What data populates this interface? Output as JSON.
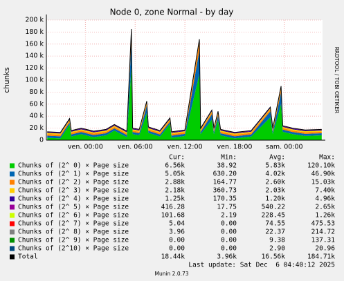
{
  "chart_data": {
    "type": "area",
    "stacked": true,
    "title": "Node 0, zone Normal - by day",
    "ylabel": "chunks",
    "side_text": "RRDTOOL / TOBI OETIKER",
    "footer": "Last update: Sat Dec  6 04:40:12 2025",
    "version": "Munin 2.0.73",
    "stats_headers": [
      "Cur:",
      "Min:",
      "Avg:",
      "Max:"
    ],
    "xlim": [
      -4.7,
      28.6
    ],
    "xticks": [
      {
        "value": 0,
        "label": "ven. 00:00"
      },
      {
        "value": 6,
        "label": "ven. 06:00"
      },
      {
        "value": 12,
        "label": "ven. 12:00"
      },
      {
        "value": 18,
        "label": "ven. 18:00"
      },
      {
        "value": 24,
        "label": "sam. 00:00"
      }
    ],
    "ylim": [
      0,
      200000
    ],
    "yticks": [
      0,
      {
        "value": 20000,
        "label": "20 k"
      },
      {
        "value": 40000,
        "label": "40 k"
      },
      {
        "value": 60000,
        "label": "60 k"
      },
      {
        "value": 80000,
        "label": "80 k"
      },
      {
        "value": 100000,
        "label": "100 k"
      },
      {
        "value": 120000,
        "label": "120 k"
      },
      {
        "value": 140000,
        "label": "140 k"
      },
      {
        "value": 160000,
        "label": "160 k"
      },
      {
        "value": 180000,
        "label": "180 k"
      },
      {
        "value": 200000,
        "label": "200 k"
      }
    ],
    "grid": true,
    "x": [
      -4.6,
      -3,
      -1.9,
      -1.7,
      -0.5,
      1,
      2.5,
      3.5,
      5,
      5.55,
      5.7,
      6.5,
      7.4,
      7.6,
      9,
      10.2,
      10.4,
      12,
      13.75,
      13.9,
      15.25,
      15.5,
      16,
      16.3,
      18,
      20,
      22.3,
      22.6,
      23.6,
      23.8,
      25,
      26.5,
      28.5
    ],
    "series": [
      {
        "name": "Chunks of (2^ 0) × Page size",
        "color": "#00cc00",
        "stats": [
          "6.56k",
          "38.92",
          "5.83k",
          "120.10k"
        ],
        "values": [
          4000,
          3000,
          26000,
          6000,
          10000,
          5000,
          8000,
          16000,
          5000,
          120000,
          10000,
          8000,
          45000,
          12000,
          6000,
          27000,
          4000,
          7000,
          110000,
          10000,
          34000,
          10000,
          33000,
          8000,
          3000,
          6000,
          38000,
          10000,
          60000,
          14000,
          10000,
          7000,
          8000
        ]
      },
      {
        "name": "Chunks of (2^ 1) × Page size",
        "color": "#0066b3",
        "stats": [
          "5.05k",
          "630.20",
          "4.02k",
          "46.90k"
        ],
        "values": [
          3500,
          3500,
          3500,
          3500,
          3500,
          3500,
          3500,
          3500,
          3500,
          46000,
          3500,
          3500,
          12000,
          3500,
          3500,
          3500,
          3500,
          3500,
          40000,
          3500,
          9000,
          3500,
          8000,
          3500,
          3500,
          3500,
          10000,
          3500,
          20000,
          3500,
          3500,
          3500,
          3500
        ]
      },
      {
        "name": "Chunks of (2^ 2) × Page size",
        "color": "#ff8000",
        "stats": [
          "2.88k",
          "164.77",
          "2.60k",
          "15.03k"
        ],
        "values": [
          2500,
          2500,
          2500,
          2500,
          2500,
          2500,
          2500,
          2500,
          2500,
          15000,
          2500,
          2500,
          4000,
          2500,
          2500,
          2500,
          2500,
          2500,
          14000,
          2500,
          3000,
          2500,
          3000,
          2500,
          2500,
          2500,
          3000,
          2500,
          6000,
          2500,
          2500,
          2500,
          2500
        ]
      },
      {
        "name": "Chunks of (2^ 3) × Page size",
        "color": "#ffcc00",
        "stats": [
          "2.18k",
          "360.73",
          "2.03k",
          "7.40k"
        ],
        "values": [
          2000,
          2000,
          2000,
          2000,
          2000,
          2000,
          2000,
          2000,
          2000,
          2000,
          2000,
          2000,
          2000,
          2000,
          2000,
          2000,
          2000,
          2000,
          2000,
          2000,
          2000,
          2000,
          2000,
          2000,
          2000,
          2000,
          2000,
          2000,
          2000,
          2000,
          2000,
          2000,
          2000
        ]
      },
      {
        "name": "Chunks of (2^ 4) × Page size",
        "color": "#330099",
        "stats": [
          "1.25k",
          "170.35",
          "1.20k",
          "4.96k"
        ],
        "values": [
          1200,
          1200,
          1200,
          1200,
          1200,
          1200,
          1200,
          1200,
          1200,
          1200,
          1200,
          1200,
          1200,
          1200,
          1200,
          1200,
          1200,
          1200,
          1200,
          1200,
          1200,
          1200,
          1200,
          1200,
          1200,
          1200,
          1200,
          1200,
          1200,
          1200,
          1200,
          1200,
          1200
        ]
      },
      {
        "name": "Chunks of (2^ 5) × Page size",
        "color": "#990099",
        "stats": [
          "416.28",
          "17.75",
          "540.22",
          "2.65k"
        ],
        "values": [
          500,
          500,
          500,
          500,
          500,
          500,
          500,
          500,
          500,
          500,
          500,
          500,
          500,
          500,
          500,
          500,
          500,
          500,
          500,
          500,
          500,
          500,
          500,
          500,
          500,
          500,
          500,
          500,
          500,
          500,
          500,
          500,
          500
        ]
      },
      {
        "name": "Chunks of (2^ 6) × Page size",
        "color": "#ccff00",
        "stats": [
          "101.68",
          "2.19",
          "228.45",
          "1.26k"
        ],
        "values": [
          200,
          200,
          200,
          200,
          200,
          200,
          200,
          200,
          200,
          200,
          200,
          200,
          200,
          200,
          200,
          200,
          200,
          200,
          200,
          200,
          200,
          200,
          200,
          200,
          200,
          200,
          200,
          200,
          200,
          200,
          200,
          200,
          200
        ]
      },
      {
        "name": "Chunks of (2^ 7) × Page size",
        "color": "#ff0000",
        "stats": [
          "5.04",
          "0.00",
          "74.55",
          "475.53"
        ],
        "values": [
          70,
          70,
          70,
          70,
          70,
          70,
          70,
          70,
          70,
          70,
          70,
          70,
          70,
          70,
          70,
          70,
          70,
          70,
          70,
          70,
          70,
          70,
          70,
          70,
          70,
          70,
          70,
          70,
          70,
          70,
          70,
          70,
          70
        ]
      },
      {
        "name": "Chunks of (2^ 8) × Page size",
        "color": "#808080",
        "stats": [
          "3.96",
          "0.00",
          "22.37",
          "214.72"
        ],
        "values": [
          20,
          20,
          20,
          20,
          20,
          20,
          20,
          20,
          20,
          20,
          20,
          20,
          20,
          20,
          20,
          20,
          20,
          20,
          20,
          20,
          20,
          20,
          20,
          20,
          20,
          20,
          20,
          20,
          20,
          20,
          20,
          20,
          20
        ]
      },
      {
        "name": "Chunks of (2^ 9) × Page size",
        "color": "#008f00",
        "stats": [
          "0.00",
          "0.00",
          "9.38",
          "137.31"
        ],
        "values": [
          8,
          8,
          8,
          8,
          8,
          8,
          8,
          8,
          8,
          8,
          8,
          8,
          8,
          8,
          8,
          8,
          8,
          8,
          8,
          8,
          8,
          8,
          8,
          8,
          8,
          8,
          8,
          8,
          8,
          8,
          8,
          8,
          8
        ]
      },
      {
        "name": "Chunks of (2^10) × Page size",
        "color": "#00487d",
        "stats": [
          "0.00",
          "0.00",
          "2.90",
          "20.96"
        ],
        "values": [
          2,
          2,
          2,
          2,
          2,
          2,
          2,
          2,
          2,
          2,
          2,
          2,
          2,
          2,
          2,
          2,
          2,
          2,
          2,
          2,
          2,
          2,
          2,
          2,
          2,
          2,
          2,
          2,
          2,
          2,
          2,
          2,
          2
        ]
      },
      {
        "name": "Total",
        "color": "#000000",
        "type": "line",
        "stats": [
          "18.44k",
          "3.96k",
          "16.56k",
          "184.71k"
        ],
        "values": [
          14000,
          13000,
          36000,
          16000,
          20000,
          15000,
          18000,
          26000,
          15000,
          185000,
          20000,
          18000,
          65000,
          22000,
          16000,
          37000,
          14000,
          17000,
          168000,
          20000,
          50000,
          20000,
          48000,
          18000,
          13000,
          16000,
          55000,
          20000,
          90000,
          24000,
          20000,
          17000,
          18000
        ]
      }
    ]
  }
}
